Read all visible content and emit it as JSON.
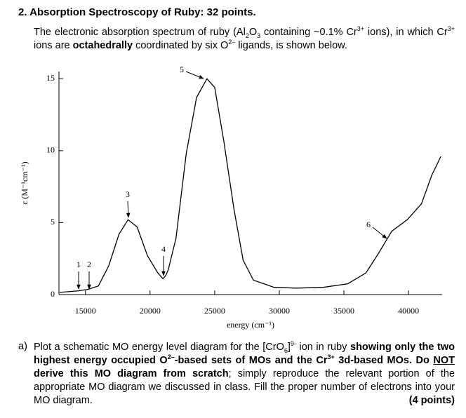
{
  "header": {
    "title": "2. Absorption Spectroscopy of Ruby: 32 points."
  },
  "intro": {
    "runs": [
      "The electronic absorption spectrum of ruby (Al",
      "2",
      "O",
      "3",
      " containing ~0.1% Cr",
      "3+",
      " ions), in which Cr",
      "3+",
      " ions are ",
      "octahedrally",
      " coordinated by six O",
      "2–",
      " ligands, is shown below."
    ]
  },
  "chart": {
    "type": "line",
    "ylabel": "ε (M⁻¹cm⁻¹)",
    "xlabel": "energy (cm⁻¹)",
    "color": "#000000",
    "x": [
      13000,
      14350,
      15160,
      16000,
      16800,
      17600,
      18300,
      19000,
      19800,
      20600,
      21000,
      21200,
      21400,
      22000,
      22800,
      23600,
      24400,
      25000,
      25700,
      26500,
      27200,
      28000,
      29600,
      31300,
      33400,
      35300,
      36700,
      37700,
      38700,
      39900,
      41000,
      41800,
      42500
    ],
    "values": [
      0.15,
      0.25,
      0.35,
      0.6,
      2.0,
      4.2,
      5.2,
      4.7,
      2.7,
      1.5,
      1.1,
      1.3,
      1.7,
      3.9,
      9.8,
      13.7,
      15.0,
      14.4,
      10.7,
      5.9,
      2.4,
      1.0,
      0.5,
      0.45,
      0.5,
      0.75,
      1.5,
      2.9,
      4.4,
      5.2,
      6.3,
      8.3,
      9.6
    ],
    "xlim": [
      12950,
      42600
    ],
    "ylim": [
      0,
      15.5
    ],
    "xticks": [
      15000,
      20000,
      25000,
      30000,
      35000,
      40000
    ],
    "yticks": [
      0,
      5,
      10,
      15
    ],
    "annotations": [
      "1",
      "2",
      "3",
      "4",
      "5",
      "6"
    ]
  },
  "question_a": {
    "label": "a)",
    "runs": [
      "Plot a schematic MO energy level diagram for the [CrO",
      "6",
      "]",
      "9-",
      " ion in ruby ",
      "showing only the two highest energy occupied O",
      "2–",
      "-based sets of MOs and the Cr",
      "3+",
      " 3d-based MOs. Do ",
      "NOT",
      " derive this MO diagram from scratch",
      "; simply reproduce the relevant portion of the appropriate MO diagram we discussed in class. Fill the proper number of electrons into your MO diagram."
    ],
    "points": "(4 points)"
  }
}
